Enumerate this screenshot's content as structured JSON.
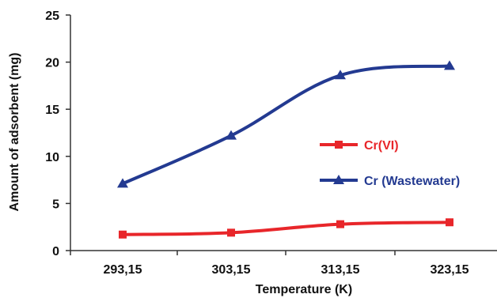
{
  "chart_data": {
    "type": "line",
    "categories": [
      "293,15",
      "303,15",
      "313,15",
      "323,15"
    ],
    "series": [
      {
        "name": "Cr(VI)",
        "values": [
          1.7,
          1.9,
          2.8,
          3.0
        ],
        "color": "#e8262a",
        "marker": "square"
      },
      {
        "name": "Cr (Wastewater)",
        "values": [
          7.1,
          12.2,
          18.6,
          19.6
        ],
        "color": "#233a91",
        "marker": "triangle"
      }
    ],
    "xlabel": "Temperature (K)",
    "ylabel": "Amount of adsorbent (mg)",
    "ylim": [
      0,
      25
    ],
    "yticks": [
      "0",
      "5",
      "10",
      "15",
      "20",
      "25"
    ],
    "ytick_values": [
      0,
      5,
      10,
      15,
      20,
      25
    ],
    "grid": false,
    "legend_position": "right"
  }
}
